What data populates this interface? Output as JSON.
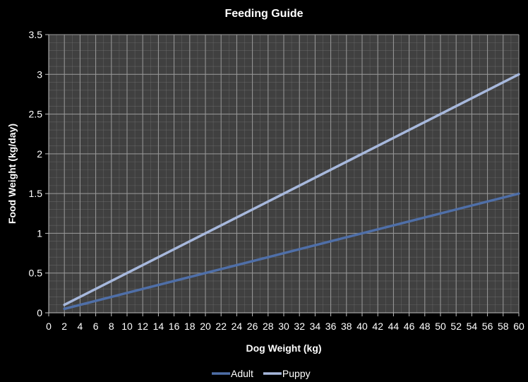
{
  "chart_data": {
    "type": "line",
    "title": "Feeding Guide",
    "xlabel": "Dog Weight (kg)",
    "ylabel": "Food Weight (kg/day)",
    "xlim": [
      0,
      60
    ],
    "ylim": [
      0,
      3.5
    ],
    "x_ticks": [
      "0",
      "2",
      "4",
      "6",
      "8",
      "10",
      "12",
      "14",
      "16",
      "18",
      "20",
      "22",
      "24",
      "26",
      "28",
      "30",
      "32",
      "34",
      "36",
      "38",
      "40",
      "42",
      "44",
      "46",
      "48",
      "50",
      "52",
      "54",
      "56",
      "58",
      "60"
    ],
    "y_ticks": [
      "0",
      "0.5",
      "1",
      "1.5",
      "2",
      "2.5",
      "3",
      "3.5"
    ],
    "grid": true,
    "legend_position": "bottom",
    "background": "#404040",
    "gridline_color": "#7a7a7a",
    "series": [
      {
        "name": "Adult",
        "color": "#4f6fa8",
        "x": [
          2,
          10,
          20,
          30,
          40,
          50,
          60
        ],
        "values": [
          0.05,
          0.25,
          0.5,
          0.75,
          1.0,
          1.25,
          1.5
        ]
      },
      {
        "name": "Puppy",
        "color": "#a7b8dc",
        "x": [
          2,
          10,
          20,
          30,
          40,
          50,
          60
        ],
        "values": [
          0.1,
          0.5,
          1.0,
          1.5,
          2.0,
          2.5,
          3.0
        ]
      }
    ]
  }
}
